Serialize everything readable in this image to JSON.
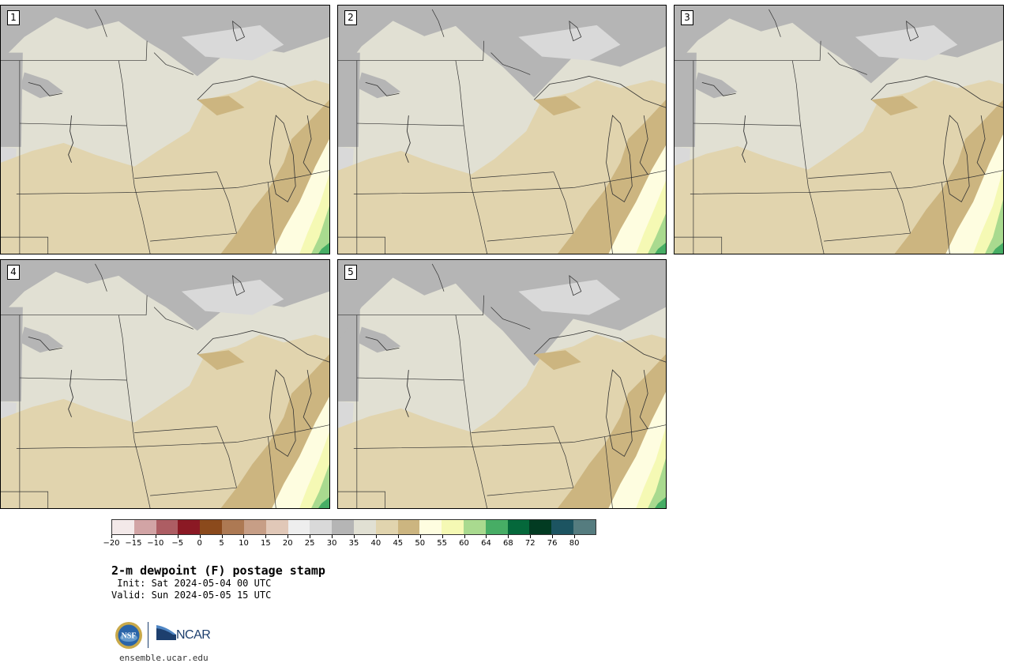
{
  "panels": [
    {
      "label": "1"
    },
    {
      "label": "2"
    },
    {
      "label": "3"
    },
    {
      "label": "4"
    },
    {
      "label": "5"
    }
  ],
  "colorbar": {
    "colors": [
      "#f3e9e9",
      "#d2a4a5",
      "#ad5d63",
      "#8b1924",
      "#8b4a1c",
      "#ad7953",
      "#c79e86",
      "#e1c8b8",
      "#eeeeee",
      "#d9d9d9",
      "#b5b5b5",
      "#e1e0d3",
      "#e1d4ae",
      "#ccb580",
      "#fefde0",
      "#f5f9b4",
      "#a9da8f",
      "#47ad65",
      "#05683b",
      "#023b22",
      "#1c5461",
      "#557c7f"
    ],
    "tick_labels": [
      "−20",
      "−15",
      "−10",
      "−5",
      "0",
      "5",
      "10",
      "15",
      "20",
      "25",
      "30",
      "35",
      "40",
      "45",
      "50",
      "55",
      "60",
      "64",
      "68",
      "72",
      "76",
      "80"
    ]
  },
  "title": "2-m dewpoint (F) postage stamp",
  "init_text": " Init: Sat 2024-05-04 00 UTC",
  "valid_text": "Valid: Sun 2024-05-05 15 UTC",
  "logos": {
    "nsf": "NSF",
    "ncar": "NCAR"
  },
  "url": "ensemble.ucar.edu"
}
